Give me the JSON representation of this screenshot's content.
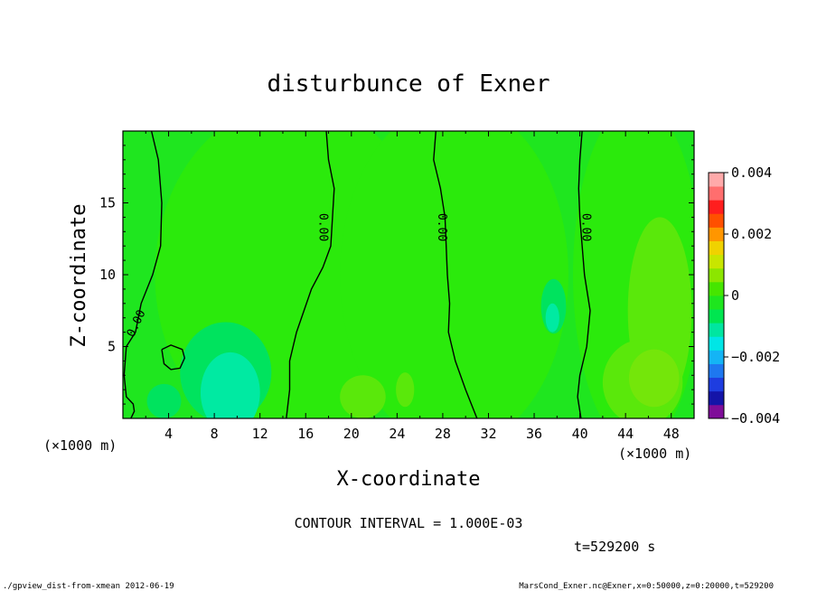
{
  "chart_data": {
    "type": "heatmap",
    "title": "disturbunce of Exner",
    "xlabel": "X-coordinate",
    "ylabel": "Z-coordinate",
    "x_units": "(×1000 m)",
    "y_units": "(×1000 m)",
    "xlim": [
      0,
      50
    ],
    "ylim": [
      0,
      20
    ],
    "x_ticks": [
      4,
      8,
      12,
      16,
      20,
      24,
      28,
      32,
      36,
      40,
      44,
      48
    ],
    "y_ticks": [
      5,
      10,
      15
    ],
    "colorbar": {
      "min": -0.004,
      "max": 0.004,
      "tick_values": [
        0.004,
        0.002,
        0,
        -0.002,
        -0.004
      ],
      "tick_labels": [
        "0.004",
        "0.002",
        "0",
        "−0.002",
        "−0.004"
      ],
      "colors": [
        "#7f0d99",
        "#1414a8",
        "#1e3de0",
        "#1e78f0",
        "#14b4f5",
        "#00e6e6",
        "#00e6a0",
        "#00e650",
        "#1ee61e",
        "#46e600",
        "#8ce600",
        "#c8e600",
        "#f0d200",
        "#ff9600",
        "#ff5000",
        "#ff1e1e",
        "#ff6e6e",
        "#ffaaaa"
      ]
    },
    "field_colors": {
      "main": "#1fe61f",
      "neutral": "#2bea0c",
      "slight_negative": "#00e35e",
      "negative": "#00eaa2",
      "slight_positive": "#5ae80b",
      "positive": "#74e60a"
    },
    "contour_label": "0.00",
    "zero_contours": [
      {
        "x": [
          2.5,
          3.1,
          3.4,
          3.3,
          2.6,
          1.6,
          1.1,
          0.3,
          0.1,
          0.3,
          0.9,
          1.0,
          0.7
        ],
        "z": [
          20.0,
          18.0,
          15.0,
          12.0,
          10.0,
          8.0,
          6.0,
          5.0,
          3.0,
          1.5,
          1.0,
          0.5,
          0.0
        ]
      },
      {
        "x": [
          17.8,
          18.0,
          18.5,
          18.2,
          17.5,
          16.5,
          15.2,
          14.6,
          14.6,
          14.3
        ],
        "z": [
          20.0,
          18.0,
          16.0,
          12.0,
          10.5,
          9.0,
          6.0,
          4.0,
          2.0,
          0.0
        ]
      },
      {
        "x": [
          27.4,
          27.2,
          27.8,
          28.2,
          28.4,
          28.6,
          28.5,
          29.1,
          30.0,
          31.0
        ],
        "z": [
          20.0,
          18.0,
          16.0,
          14.0,
          10.0,
          8.0,
          6.0,
          4.0,
          2.0,
          0.0
        ]
      },
      {
        "x": [
          40.2,
          40.0,
          39.9,
          40.0,
          40.4,
          40.9,
          40.6,
          40.0,
          39.8,
          40.1
        ],
        "z": [
          20.0,
          18.0,
          16.0,
          14.0,
          10.0,
          7.5,
          5.0,
          3.0,
          1.5,
          0.0
        ]
      },
      {
        "x": [
          3.4,
          4.2,
          5.2,
          5.4,
          5.0,
          4.2,
          3.6,
          3.4
        ],
        "z": [
          4.8,
          5.1,
          4.8,
          4.2,
          3.5,
          3.4,
          3.8,
          4.8
        ]
      }
    ],
    "contour_label_positions": [
      {
        "x": 1.2,
        "z": 6.6,
        "rotate": -65
      },
      {
        "x": 17.5,
        "z": 13.3,
        "rotate": 90
      },
      {
        "x": 27.9,
        "z": 13.3,
        "rotate": 90
      },
      {
        "x": 40.5,
        "z": 13.3,
        "rotate": 90
      }
    ]
  },
  "footer": {
    "contour_interval": "CONTOUR INTERVAL = 1.000E-03",
    "time": "t=529200 s",
    "script": "./gpview_dist-from-xmean  2012-06-19",
    "source": "MarsCond_Exner.nc@Exner,x=0:50000,z=0:20000,t=529200"
  }
}
